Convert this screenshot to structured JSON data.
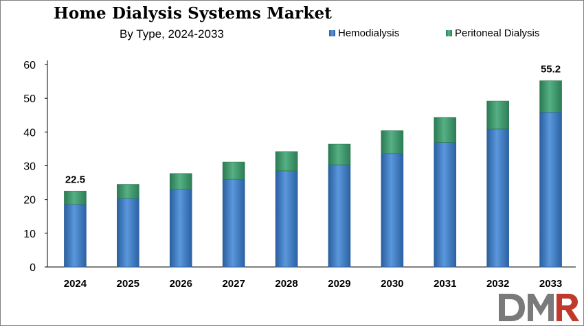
{
  "chart_data": {
    "type": "bar",
    "stacked": true,
    "title": "Home Dialysis Systems Market",
    "subtitle": "By Type, 2024-2033",
    "categories": [
      "2024",
      "2025",
      "2026",
      "2027",
      "2028",
      "2029",
      "2030",
      "2031",
      "2032",
      "2033"
    ],
    "series": [
      {
        "name": "Hemodialysis",
        "color": "#3f7dc6",
        "values": [
          18.6,
          20.3,
          23.0,
          26.0,
          28.5,
          30.3,
          33.6,
          36.9,
          40.9,
          45.9
        ]
      },
      {
        "name": "Peritoneal Dialysis",
        "color": "#3f9a6b",
        "values": [
          3.9,
          4.2,
          4.7,
          5.1,
          5.7,
          6.1,
          6.8,
          7.4,
          8.3,
          9.3
        ]
      }
    ],
    "data_labels": [
      {
        "category": "2024",
        "text": "22.5"
      },
      {
        "category": "2033",
        "text": "55.2"
      }
    ],
    "ylim": [
      0,
      60
    ],
    "yticks": [
      "0",
      "10",
      "20",
      "30",
      "40",
      "50",
      "60"
    ],
    "grid": false,
    "legend": "top-right"
  },
  "logo": {
    "text": "DMR"
  }
}
